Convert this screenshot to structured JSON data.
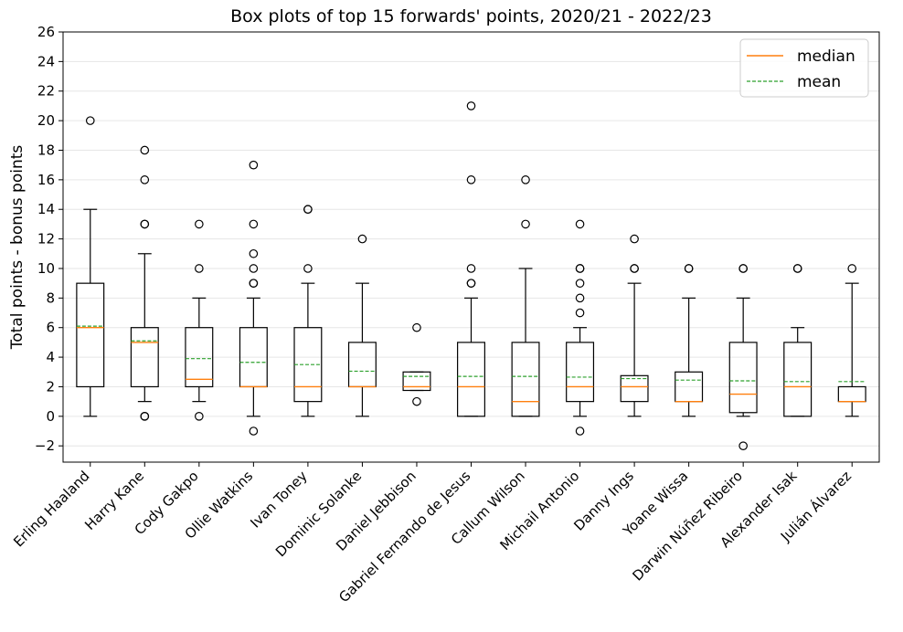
{
  "chart_data": {
    "type": "box",
    "title": "Box plots of top 15 forwards' points, 2020/21 - 2022/23",
    "ylabel": "Total points - bonus points",
    "xlabel": "",
    "ylim": [
      -3.1,
      26
    ],
    "yticks": [
      -2,
      0,
      2,
      4,
      6,
      8,
      10,
      12,
      14,
      16,
      18,
      20,
      22,
      24,
      26
    ],
    "ytick_labels": [
      "−2",
      "0",
      "2",
      "4",
      "6",
      "8",
      "10",
      "12",
      "14",
      "16",
      "18",
      "20",
      "22",
      "24",
      "26"
    ],
    "grid": "horizontal",
    "legend": {
      "placement": "top-right",
      "entries": [
        {
          "label": "median",
          "style": "solid",
          "color": "#ff7f0e"
        },
        {
          "label": "mean",
          "style": "dashed",
          "color": "#2ca02c"
        }
      ]
    },
    "colors": {
      "median": "#ff7f0e",
      "mean": "#2ca02c",
      "box": "#000000",
      "grid": "#e6e6e6"
    },
    "categories": [
      "Erling Haaland",
      "Harry Kane",
      "Cody Gakpo",
      "Ollie Watkins",
      "Ivan Toney",
      "Dominic Solanke",
      "Daniel Jebbison",
      "Gabriel Fernando de Jesus",
      "Callum Wilson",
      "Michail Antonio",
      "Danny Ings",
      "Yoane Wissa",
      "Darwin Núñez Ribeiro",
      "Alexander Isak",
      "Julián Álvarez"
    ],
    "boxes": [
      {
        "q1": 2,
        "median": 6,
        "q3": 9,
        "whisker_low": 0,
        "whisker_high": 14,
        "mean": 6.1,
        "outliers": [
          20
        ]
      },
      {
        "q1": 2,
        "median": 5,
        "q3": 6,
        "whisker_low": 1,
        "whisker_high": 11,
        "mean": 5.1,
        "outliers": [
          0,
          0,
          13,
          13,
          16,
          18
        ]
      },
      {
        "q1": 2,
        "median": 2.5,
        "q3": 6,
        "whisker_low": 1,
        "whisker_high": 8,
        "mean": 3.9,
        "outliers": [
          0,
          10,
          13
        ]
      },
      {
        "q1": 2,
        "median": 2,
        "q3": 6,
        "whisker_low": 0,
        "whisker_high": 8,
        "mean": 3.65,
        "outliers": [
          -1,
          9,
          9,
          10,
          11,
          13,
          17
        ]
      },
      {
        "q1": 1,
        "median": 2,
        "q3": 6,
        "whisker_low": 0,
        "whisker_high": 9,
        "mean": 3.5,
        "outliers": [
          10,
          14,
          14
        ]
      },
      {
        "q1": 2,
        "median": 2,
        "q3": 5,
        "whisker_low": 0,
        "whisker_high": 9,
        "mean": 3.05,
        "outliers": [
          12
        ]
      },
      {
        "q1": 1.75,
        "median": 2,
        "q3": 3,
        "whisker_low": 1.75,
        "whisker_high": 3,
        "mean": 2.7,
        "outliers": [
          1,
          6
        ]
      },
      {
        "q1": 0,
        "median": 2,
        "q3": 5,
        "whisker_low": 0,
        "whisker_high": 8,
        "mean": 2.7,
        "outliers": [
          9,
          9,
          10,
          16,
          21
        ]
      },
      {
        "q1": 0,
        "median": 1,
        "q3": 5,
        "whisker_low": 0,
        "whisker_high": 10,
        "mean": 2.7,
        "outliers": [
          13,
          16
        ]
      },
      {
        "q1": 1,
        "median": 2,
        "q3": 5,
        "whisker_low": 0,
        "whisker_high": 6,
        "mean": 2.65,
        "outliers": [
          -1,
          7,
          8,
          9,
          10,
          10,
          13
        ]
      },
      {
        "q1": 1,
        "median": 2,
        "q3": 2.75,
        "whisker_low": 0,
        "whisker_high": 9,
        "mean": 2.55,
        "outliers": [
          10,
          10,
          12
        ]
      },
      {
        "q1": 1,
        "median": 1,
        "q3": 3,
        "whisker_low": 0,
        "whisker_high": 8,
        "mean": 2.45,
        "outliers": [
          10,
          10
        ]
      },
      {
        "q1": 0.25,
        "median": 1.5,
        "q3": 5,
        "whisker_low": 0,
        "whisker_high": 8,
        "mean": 2.4,
        "outliers": [
          -2,
          10,
          10
        ]
      },
      {
        "q1": 0,
        "median": 2,
        "q3": 5,
        "whisker_low": 0,
        "whisker_high": 6,
        "mean": 2.35,
        "outliers": [
          10,
          10
        ]
      },
      {
        "q1": 1,
        "median": 1,
        "q3": 2,
        "whisker_low": 0,
        "whisker_high": 9,
        "mean": 2.35,
        "outliers": [
          10
        ]
      }
    ]
  }
}
